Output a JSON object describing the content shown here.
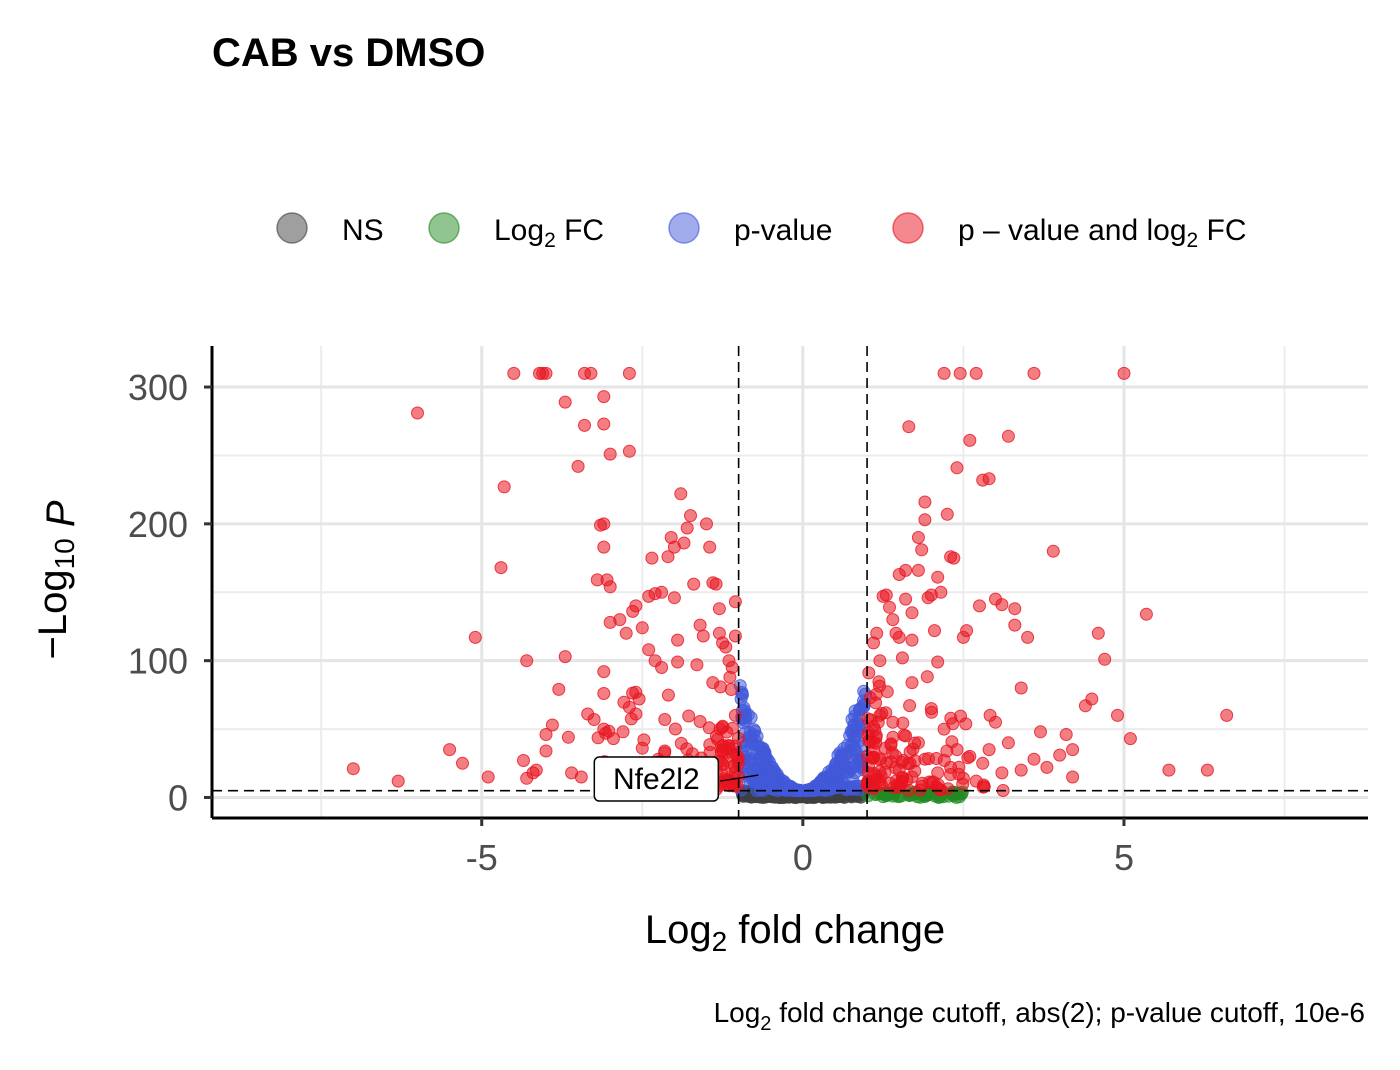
{
  "chart_data": {
    "type": "scatter",
    "title": "CAB vs DMSO",
    "xlabel": {
      "prefix": "Log",
      "sub": "2",
      "suffix": " fold change"
    },
    "ylabel": {
      "prefix": "−Log",
      "sub": "10",
      "suffix": " P"
    },
    "caption": {
      "prefix": "Log",
      "sub": "2",
      "suffix": " fold change cutoff, abs(2); p-value cutoff, 10e-6"
    },
    "xlim": [
      -9.2,
      8.8
    ],
    "ylim": [
      -15,
      330
    ],
    "xticks": [
      -5,
      0,
      5
    ],
    "xtick_labels": [
      "-5",
      "0",
      "5"
    ],
    "yticks": [
      0,
      100,
      200,
      300
    ],
    "ytick_labels": [
      "0",
      "100",
      "200",
      "300"
    ],
    "grid": true,
    "legend_position": "top",
    "cutoffs": {
      "x": [
        -1,
        1
      ],
      "y": 5
    },
    "legend": [
      {
        "key": "ns",
        "parts": [
          {
            "t": "NS"
          }
        ]
      },
      {
        "key": "fc",
        "parts": [
          {
            "t": "Log"
          },
          {
            "t": "2",
            "sub": true
          },
          {
            "t": " FC"
          }
        ]
      },
      {
        "key": "p",
        "parts": [
          {
            "t": "p-value"
          }
        ]
      },
      {
        "key": "both",
        "parts": [
          {
            "t": "p – value and log"
          },
          {
            "t": "2",
            "sub": true
          },
          {
            "t": " FC"
          }
        ]
      }
    ],
    "colors": {
      "ns": "#404040",
      "fc": "#228b22",
      "p": "#4159d9",
      "both": "#e8141f"
    },
    "annotation": {
      "text": "Nfe2l2",
      "x": -0.6,
      "y": 12
    },
    "series": [
      {
        "key": "both",
        "points": [
          [
            -7.0,
            21
          ],
          [
            -6.3,
            12
          ],
          [
            -6.0,
            281
          ],
          [
            -5.5,
            35
          ],
          [
            -5.3,
            25
          ],
          [
            -5.1,
            117
          ],
          [
            -4.9,
            15
          ],
          [
            -4.7,
            168
          ],
          [
            -4.65,
            227
          ],
          [
            -4.5,
            310
          ],
          [
            -4.3,
            14
          ],
          [
            -4.35,
            27
          ],
          [
            -4.3,
            100
          ],
          [
            -4.2,
            18
          ],
          [
            -4.15,
            20
          ],
          [
            -4.1,
            310
          ],
          [
            -4.05,
            310
          ],
          [
            -4.0,
            310
          ],
          [
            -4.0,
            34
          ],
          [
            -4.0,
            46
          ],
          [
            -3.9,
            53
          ],
          [
            -3.8,
            79
          ],
          [
            -3.7,
            289
          ],
          [
            -3.7,
            103
          ],
          [
            -3.65,
            44
          ],
          [
            -3.6,
            18
          ],
          [
            -3.5,
            242
          ],
          [
            -3.45,
            15
          ],
          [
            -3.4,
            310
          ],
          [
            -3.4,
            272
          ],
          [
            -3.3,
            310
          ],
          [
            -3.35,
            61
          ],
          [
            -3.25,
            57
          ],
          [
            -3.2,
            159
          ],
          [
            -3.15,
            199
          ],
          [
            -3.1,
            293
          ],
          [
            -3.1,
            273
          ],
          [
            -3.1,
            200
          ],
          [
            -3.1,
            183
          ],
          [
            -3.1,
            92
          ],
          [
            -3.1,
            76
          ],
          [
            -3.1,
            50
          ],
          [
            -3.05,
            159
          ],
          [
            -3.05,
            13
          ],
          [
            -3.0,
            251
          ],
          [
            -3.0,
            154
          ],
          [
            -3.0,
            128
          ],
          [
            -2.95,
            43
          ],
          [
            -2.9,
            14
          ],
          [
            -2.85,
            130
          ],
          [
            -2.8,
            48
          ],
          [
            -2.75,
            120
          ],
          [
            -2.7,
            253
          ],
          [
            -2.7,
            310
          ],
          [
            -2.7,
            66
          ],
          [
            -2.65,
            136
          ],
          [
            -2.6,
            140
          ],
          [
            -2.6,
            61
          ],
          [
            -2.55,
            72
          ],
          [
            -2.5,
            124
          ],
          [
            -2.5,
            36
          ],
          [
            -2.45,
            14
          ],
          [
            -2.4,
            147
          ],
          [
            -2.4,
            108
          ],
          [
            -2.35,
            175
          ],
          [
            -2.3,
            149
          ],
          [
            -2.3,
            100
          ],
          [
            -2.25,
            28
          ],
          [
            -2.2,
            150
          ],
          [
            -2.2,
            95
          ],
          [
            -2.15,
            57
          ],
          [
            -2.15,
            34
          ],
          [
            -2.1,
            176
          ],
          [
            -2.05,
            190
          ],
          [
            -2.0,
            183
          ],
          [
            -2.0,
            146
          ],
          [
            -1.95,
            115
          ],
          [
            -1.95,
            99
          ],
          [
            -1.9,
            222
          ],
          [
            -1.85,
            186
          ],
          [
            -1.8,
            197
          ],
          [
            -1.75,
            206
          ],
          [
            -1.7,
            156
          ],
          [
            -1.65,
            97
          ],
          [
            -1.6,
            126
          ],
          [
            -1.55,
            118
          ],
          [
            -1.5,
            200
          ],
          [
            -1.45,
            183
          ],
          [
            -1.4,
            157
          ],
          [
            -1.35,
            156
          ],
          [
            -1.3,
            138
          ],
          [
            -1.3,
            120
          ],
          [
            -1.25,
            113
          ],
          [
            -1.2,
            110
          ],
          [
            -1.15,
            100
          ],
          [
            -1.1,
            95
          ],
          [
            -1.05,
            143
          ],
          [
            -1.05,
            118
          ],
          [
            -1.25,
            25
          ],
          [
            -1.15,
            38
          ],
          [
            -1.05,
            60
          ],
          [
            1.05,
            73
          ],
          [
            1.1,
            113
          ],
          [
            1.15,
            120
          ],
          [
            1.2,
            100
          ],
          [
            1.25,
            147
          ],
          [
            1.3,
            148
          ],
          [
            1.35,
            139
          ],
          [
            1.4,
            130
          ],
          [
            1.45,
            120
          ],
          [
            1.5,
            117
          ],
          [
            1.5,
            163
          ],
          [
            1.55,
            102
          ],
          [
            1.6,
            166
          ],
          [
            1.6,
            145
          ],
          [
            1.65,
            271
          ],
          [
            1.7,
            135
          ],
          [
            1.7,
            115
          ],
          [
            1.7,
            84
          ],
          [
            1.8,
            190
          ],
          [
            1.8,
            166
          ],
          [
            1.85,
            181
          ],
          [
            1.9,
            216
          ],
          [
            1.9,
            203
          ],
          [
            1.95,
            146
          ],
          [
            2.0,
            148
          ],
          [
            2.05,
            122
          ],
          [
            2.1,
            161
          ],
          [
            2.1,
            99
          ],
          [
            2.15,
            150
          ],
          [
            2.2,
            310
          ],
          [
            2.25,
            207
          ],
          [
            2.3,
            176
          ],
          [
            2.35,
            175
          ],
          [
            2.4,
            241
          ],
          [
            2.45,
            310
          ],
          [
            2.5,
            117
          ],
          [
            2.55,
            122
          ],
          [
            2.6,
            261
          ],
          [
            2.7,
            310
          ],
          [
            2.75,
            140
          ],
          [
            2.8,
            232
          ],
          [
            2.9,
            233
          ],
          [
            3.0,
            145
          ],
          [
            3.1,
            141
          ],
          [
            3.2,
            264
          ],
          [
            3.3,
            138
          ],
          [
            3.3,
            126
          ],
          [
            3.4,
            80
          ],
          [
            3.5,
            117
          ],
          [
            3.6,
            310
          ],
          [
            3.7,
            48
          ],
          [
            3.9,
            180
          ],
          [
            4.0,
            31
          ],
          [
            4.1,
            46
          ],
          [
            4.2,
            35
          ],
          [
            4.4,
            67
          ],
          [
            4.5,
            72
          ],
          [
            4.6,
            120
          ],
          [
            4.7,
            101
          ],
          [
            4.9,
            60
          ],
          [
            5.0,
            310
          ],
          [
            5.1,
            43
          ],
          [
            5.35,
            134
          ],
          [
            5.7,
            20
          ],
          [
            6.3,
            20
          ],
          [
            6.6,
            60
          ],
          [
            1.2,
            60
          ],
          [
            1.4,
            55
          ],
          [
            1.6,
            45
          ],
          [
            1.8,
            40
          ],
          [
            2.0,
            65
          ],
          [
            2.2,
            50
          ],
          [
            2.4,
            35
          ],
          [
            2.6,
            30
          ],
          [
            2.8,
            25
          ],
          [
            3.0,
            55
          ],
          [
            3.2,
            40
          ],
          [
            3.4,
            20
          ],
          [
            3.6,
            28
          ],
          [
            3.8,
            22
          ],
          [
            4.2,
            15
          ],
          [
            1.3,
            25
          ],
          [
            1.5,
            20
          ],
          [
            1.7,
            15
          ],
          [
            1.9,
            28
          ],
          [
            2.1,
            18
          ],
          [
            2.3,
            22
          ],
          [
            2.5,
            14
          ],
          [
            2.7,
            12
          ],
          [
            2.9,
            35
          ],
          [
            3.1,
            18
          ]
        ]
      }
    ]
  }
}
